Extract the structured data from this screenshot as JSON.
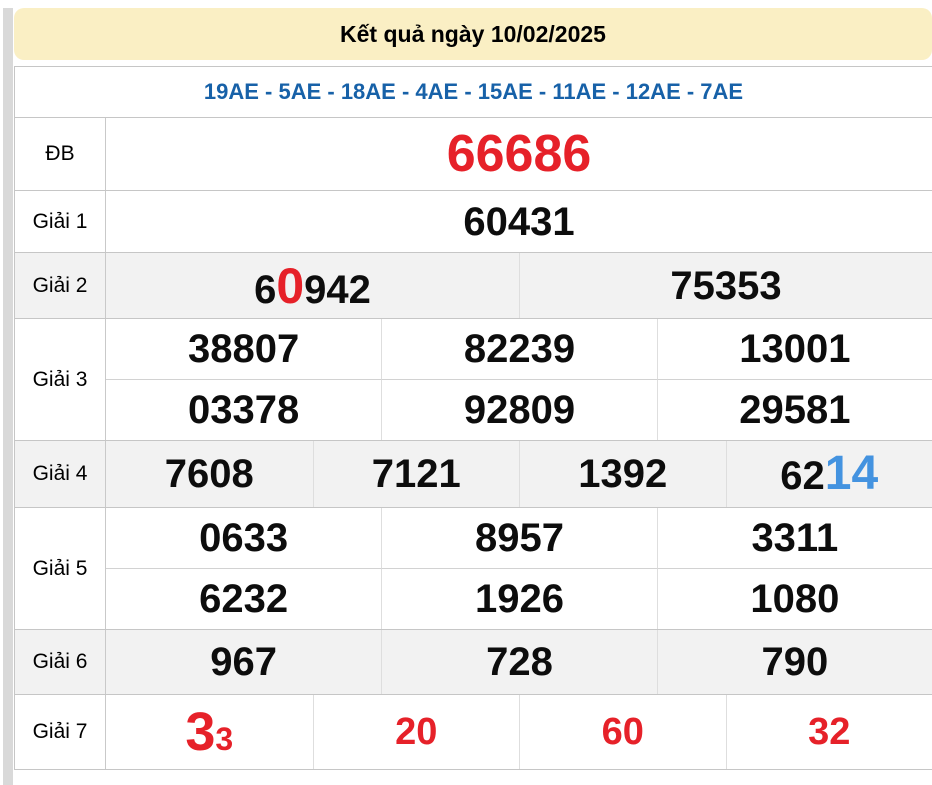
{
  "banner": {
    "title": "Kết quả ngày 10/02/2025",
    "bg_color": "#faefc4"
  },
  "ae_summary": {
    "text": "19AE - 5AE - 18AE - 4AE - 15AE - 11AE - 12AE - 7AE",
    "color": "#1761a8"
  },
  "colors": {
    "red_accent": "#e62129",
    "blue_accent": "#4493e0",
    "alt_row_bg": "#f2f2f2"
  },
  "prizes": {
    "db": {
      "label": "ĐB",
      "value": "66686"
    },
    "g1": {
      "label": "Giải 1",
      "value": "60431"
    },
    "g2": {
      "label": "Giải 2",
      "cell1": {
        "pre": "6",
        "hl": "0",
        "post": "942"
      },
      "cell2": "75353"
    },
    "g3": {
      "label": "Giải 3",
      "values": [
        "38807",
        "82239",
        "13001",
        "03378",
        "92809",
        "29581"
      ]
    },
    "g4": {
      "label": "Giải 4",
      "values": [
        "7608",
        "7121",
        "1392"
      ],
      "cell4": {
        "pre": "62",
        "hl": "14"
      }
    },
    "g5": {
      "label": "Giải 5",
      "values": [
        "0633",
        "8957",
        "3311",
        "6232",
        "1926",
        "1080"
      ]
    },
    "g6": {
      "label": "Giải 6",
      "values": [
        "967",
        "728",
        "790"
      ]
    },
    "g7": {
      "label": "Giải 7",
      "cell1": {
        "big": "3",
        "small": "3"
      },
      "values": [
        "20",
        "60",
        "32"
      ]
    }
  }
}
